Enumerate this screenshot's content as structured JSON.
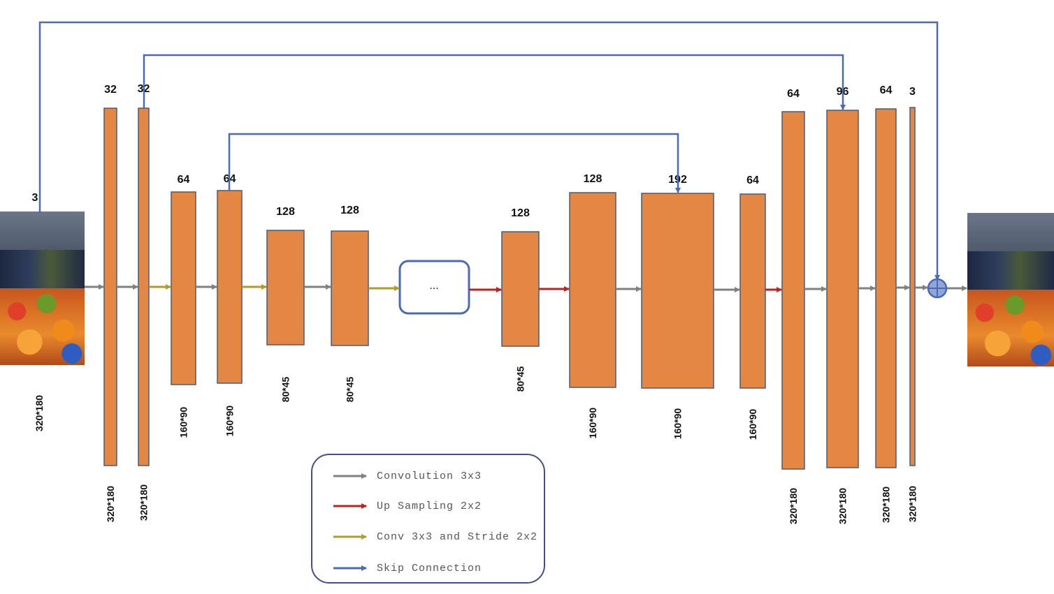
{
  "input_image": {
    "icon": "market-photo-input",
    "channels": "3",
    "size": "320*180"
  },
  "output_image": {
    "icon": "market-photo-output"
  },
  "placeholder_box": {
    "label": "..."
  },
  "blocks": [
    {
      "id": "enc1",
      "channels": "32",
      "size": "320*180"
    },
    {
      "id": "enc2",
      "channels": "32",
      "size": "320*180"
    },
    {
      "id": "enc3",
      "channels": "64",
      "size": "160*90"
    },
    {
      "id": "enc4",
      "channels": "64",
      "size": "160*90"
    },
    {
      "id": "enc5",
      "channels": "128",
      "size": "80*45"
    },
    {
      "id": "enc6",
      "channels": "128",
      "size": "80*45"
    },
    {
      "id": "dec1",
      "channels": "128",
      "size": "80*45"
    },
    {
      "id": "dec2",
      "channels": "128",
      "size": "160*90"
    },
    {
      "id": "dec3",
      "channels": "192",
      "size": "160*90"
    },
    {
      "id": "dec4",
      "channels": "64",
      "size": "160*90"
    },
    {
      "id": "dec5",
      "channels": "64",
      "size": "320*180"
    },
    {
      "id": "dec6",
      "channels": "96",
      "size": "320*180"
    },
    {
      "id": "dec7",
      "channels": "64",
      "size": "320*180"
    },
    {
      "id": "dec8",
      "channels": "3",
      "size": "320*180"
    }
  ],
  "legend": [
    {
      "key": "conv",
      "label": "Convolution 3x3",
      "color": "#808080"
    },
    {
      "key": "up",
      "label": "Up Sampling 2x2",
      "color": "#c0201e"
    },
    {
      "key": "stride",
      "label": "Conv 3x3 and Stride 2x2",
      "color": "#b59a2a"
    },
    {
      "key": "skip",
      "label": "Skip Connection",
      "color": "#4a6ab8"
    }
  ],
  "colors": {
    "block_fill": "#e38743",
    "block_stroke": "#4c5a78",
    "skip": "#4a6ab8",
    "sum_node": "#8fa6d8"
  }
}
